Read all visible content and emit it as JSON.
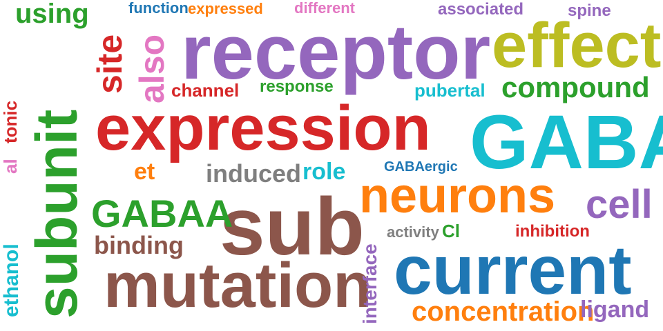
{
  "palette": {
    "blue": "#1f77b4",
    "orange": "#ff7f0e",
    "green": "#2ca02c",
    "red": "#d62728",
    "purple": "#9467bd",
    "brown": "#8c564b",
    "pink": "#e377c2",
    "gray": "#7f7f7f",
    "olive": "#bcbd22",
    "cyan": "#17becf"
  },
  "words": [
    {
      "text": "receptor",
      "color": "#9467bd"
    },
    {
      "text": "expression",
      "color": "#d62728"
    },
    {
      "text": "GABA",
      "color": "#17becf"
    },
    {
      "text": "sub",
      "color": "#8c564b"
    },
    {
      "text": "current",
      "color": "#1f77b4"
    },
    {
      "text": "mutation",
      "color": "#8c564b"
    },
    {
      "text": "subunit",
      "color": "#2ca02c"
    },
    {
      "text": "effect",
      "color": "#bcbd22"
    },
    {
      "text": "neurons",
      "color": "#ff7f0e"
    },
    {
      "text": "GABAA",
      "color": "#2ca02c"
    },
    {
      "text": "cell",
      "color": "#9467bd"
    },
    {
      "text": "compound",
      "color": "#2ca02c"
    },
    {
      "text": "concentration",
      "color": "#ff7f0e"
    },
    {
      "text": "also",
      "color": "#e377c2"
    },
    {
      "text": "site",
      "color": "#d62728"
    },
    {
      "text": "using",
      "color": "#2ca02c"
    },
    {
      "text": "binding",
      "color": "#8c564b"
    },
    {
      "text": "induced",
      "color": "#7f7f7f"
    },
    {
      "text": "role",
      "color": "#17becf"
    },
    {
      "text": "ligand",
      "color": "#9467bd"
    },
    {
      "text": "channel",
      "color": "#d62728"
    },
    {
      "text": "response",
      "color": "#2ca02c"
    },
    {
      "text": "pubertal",
      "color": "#17becf"
    },
    {
      "text": "interface",
      "color": "#9467bd"
    },
    {
      "text": "inhibition",
      "color": "#d62728"
    },
    {
      "text": "ethanol",
      "color": "#17becf"
    },
    {
      "text": "et",
      "color": "#ff7f0e"
    },
    {
      "text": "activity",
      "color": "#7f7f7f"
    },
    {
      "text": "Cl",
      "color": "#2ca02c"
    },
    {
      "text": "GABAergic",
      "color": "#1f77b4"
    },
    {
      "text": "function",
      "color": "#1f77b4"
    },
    {
      "text": "expressed",
      "color": "#ff7f0e"
    },
    {
      "text": "different",
      "color": "#e377c2"
    },
    {
      "text": "associated",
      "color": "#9467bd"
    },
    {
      "text": "spine",
      "color": "#9467bd"
    },
    {
      "text": "tonic",
      "color": "#d62728"
    },
    {
      "text": "al",
      "color": "#e377c2"
    }
  ]
}
